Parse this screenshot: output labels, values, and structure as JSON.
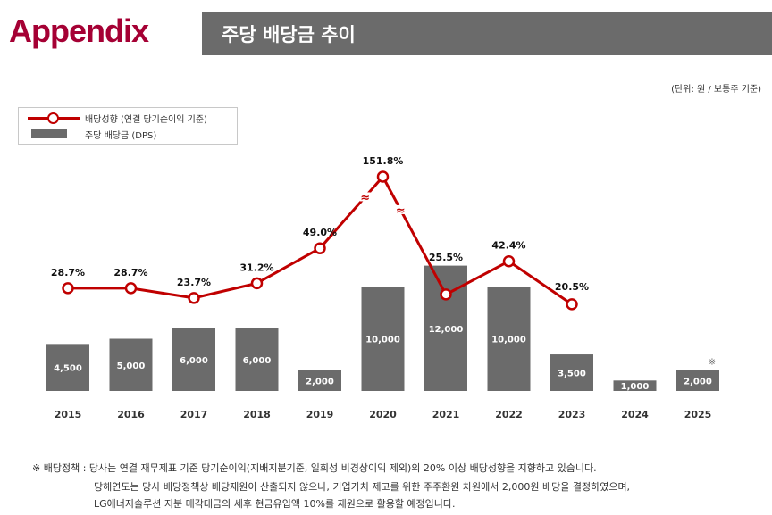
{
  "header": {
    "brand": "Appendix",
    "title": "주당 배당금 추이"
  },
  "unit_note": "(단위: 원 / 보통주 기준)",
  "legend": {
    "line_label": "배당성향  (연결 당기순이익 기준)",
    "bar_label": "주당 배당금 (DPS)"
  },
  "colors": {
    "brand": "#a50034",
    "bar": "#6b6b6b",
    "line": "#c00000"
  },
  "chart_data": {
    "type": "bar+line",
    "title": "주당 배당금 추이",
    "categories": [
      "2015",
      "2016",
      "2017",
      "2018",
      "2019",
      "2020",
      "2021",
      "2022",
      "2023",
      "2024",
      "2025"
    ],
    "series": [
      {
        "name": "주당 배당금 (DPS)",
        "type": "bar",
        "values": [
          4500,
          5000,
          6000,
          6000,
          2000,
          10000,
          12000,
          10000,
          3500,
          1000,
          2000
        ],
        "labels": [
          "4,500",
          "5,000",
          "6,000",
          "6,000",
          "2,000",
          "10,000",
          "12,000",
          "10,000",
          "3,500",
          "1,000",
          "2,000"
        ]
      },
      {
        "name": "배당성향 (연결 당기순이익 기준)",
        "type": "line",
        "values": [
          28.7,
          28.7,
          23.7,
          31.2,
          49.0,
          151.8,
          25.5,
          42.4,
          20.5,
          null,
          null
        ],
        "labels": [
          "28.7%",
          "28.7%",
          "23.7%",
          "31.2%",
          "49.0%",
          "151.8%",
          "25.5%",
          "42.4%",
          "20.5%",
          null,
          null
        ]
      }
    ],
    "axis_break": "≈",
    "annotations": [
      "※"
    ]
  },
  "notes": [
    "※ 배당정책 : 당사는 연결 재무제표 기준 당기순이익(지배지분기준, 일회성 비경상이익 제외)의 20% 이상 배당성향을 지향하고 있습니다.",
    "당해연도는 당사 배당정책상 배당재원이 산출되지 않으나, 기업가치 제고를 위한 주주환원 차원에서 2,000원 배당을 결정하였으며,",
    "LG에너지솔루션 지분 매각대금의 세후 현금유입액 10%를 재원으로 활용할 예정입니다."
  ]
}
